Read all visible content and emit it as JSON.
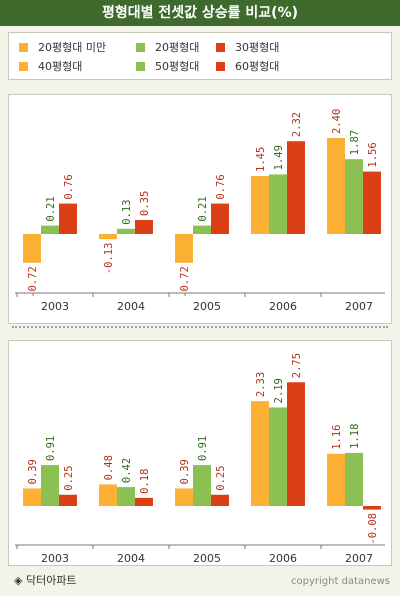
{
  "title": "평형대별 전셋값 상승률 비교(%)",
  "colors": [
    "#fcb034",
    "#8bc153",
    "#da3f16"
  ],
  "legend": {
    "row1": [
      "20평형대 미만",
      "20평형대",
      "30평형대"
    ],
    "row2": [
      "40평형대",
      "50평형대",
      "60평형대"
    ]
  },
  "footer": {
    "logo_icon": "diamond-icon",
    "brand": "◈ 닥터아파트",
    "copyright": "copyright datanews"
  },
  "chart_data": [
    {
      "type": "bar",
      "categories": [
        "2003",
        "2004",
        "2005",
        "2006",
        "2007"
      ],
      "series": [
        {
          "name": "20평형대 미만",
          "values": [
            -0.72,
            -0.13,
            -0.72,
            1.45,
            2.4
          ]
        },
        {
          "name": "20평형대",
          "values": [
            0.21,
            0.13,
            0.21,
            1.49,
            1.87
          ]
        },
        {
          "name": "30평형대",
          "values": [
            0.76,
            0.35,
            0.76,
            2.32,
            1.56
          ]
        }
      ],
      "data_labels": [
        [
          "-0.72",
          "-0.13",
          "-0.72",
          "1.45",
          "2.40"
        ],
        [
          "0.21",
          "0.13",
          "0.21",
          "1.49",
          "1.87"
        ],
        [
          "0.76",
          "0.35",
          "0.76",
          "2.32",
          "1.56"
        ]
      ]
    },
    {
      "type": "bar",
      "categories": [
        "2003",
        "2004",
        "2005",
        "2006",
        "2007"
      ],
      "series": [
        {
          "name": "40평형대",
          "values": [
            0.39,
            0.48,
            0.39,
            2.33,
            1.16
          ]
        },
        {
          "name": "50평형대",
          "values": [
            0.91,
            0.42,
            0.91,
            2.19,
            1.18
          ]
        },
        {
          "name": "60평형대",
          "values": [
            0.25,
            0.18,
            0.25,
            2.75,
            -0.08
          ]
        }
      ],
      "data_labels": [
        [
          "0.39",
          "0.48",
          "0.39",
          "2.33",
          "1.16"
        ],
        [
          "0.91",
          "0.42",
          "0.91",
          "2.19",
          "1.18"
        ],
        [
          "0.25",
          "0.18",
          "0.25",
          "2.75",
          "-0.08"
        ]
      ]
    }
  ]
}
